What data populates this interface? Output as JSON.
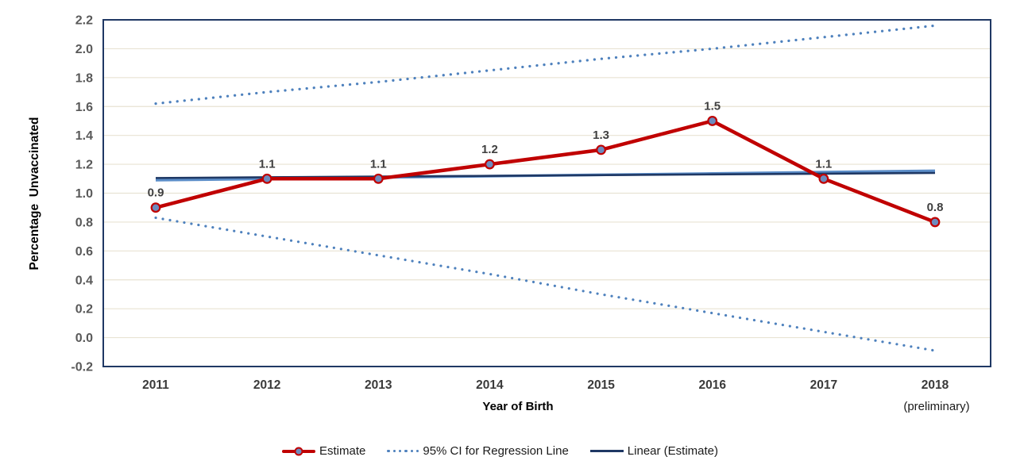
{
  "chart_data": {
    "type": "line",
    "title": "",
    "categories": [
      "2011",
      "2012",
      "2013",
      "2014",
      "2015",
      "2016",
      "2017",
      "2018"
    ],
    "xlabel": "Year of Birth",
    "x_note": "(preliminary)",
    "ylabel": "Percentage  Unvaccinated",
    "ylim": [
      -0.2,
      2.2
    ],
    "ytick_step": 0.2,
    "grid": "horizontal only",
    "legend_position": "bottom",
    "series": [
      {
        "name": "95% CI for Regression Line (upper bound)",
        "role": "ci-upper",
        "style": "dotted",
        "color": "#4E81BD",
        "values": [
          1.62,
          1.7,
          1.77,
          1.85,
          1.93,
          2.0,
          2.08,
          2.16
        ]
      },
      {
        "name": "95% CI for Regression Line (lower bound)",
        "role": "ci-lower",
        "style": "dotted",
        "color": "#4E81BD",
        "values": [
          0.83,
          0.7,
          0.57,
          0.44,
          0.3,
          0.17,
          0.04,
          -0.09
        ]
      },
      {
        "name": "Regression line",
        "role": "regression",
        "style": "solid",
        "color": "#5B8DC8",
        "values": [
          1.09,
          1.099,
          1.109,
          1.118,
          1.127,
          1.136,
          1.146,
          1.155
        ]
      },
      {
        "name": "Linear (Estimate)",
        "role": "trend",
        "style": "solid",
        "color": "#1F3864",
        "values": [
          1.105,
          1.11,
          1.115,
          1.12,
          1.125,
          1.13,
          1.135,
          1.14
        ]
      },
      {
        "name": "Estimate",
        "role": "estimate",
        "style": "solid-markers",
        "color": "#C00000",
        "marker_fill": "#6D8BBE",
        "values": [
          0.9,
          1.1,
          1.1,
          1.2,
          1.3,
          1.5,
          1.1,
          0.8
        ],
        "data_labels": [
          "0.9",
          "1.1",
          "1.1",
          "1.2",
          "1.3",
          "1.5",
          "1.1",
          "0.8"
        ]
      }
    ],
    "legend": [
      {
        "label": "Estimate"
      },
      {
        "label": "95% CI for Regression Line"
      },
      {
        "label": "Linear (Estimate)"
      }
    ],
    "colors": {
      "grid": "#E8E3D3",
      "border": "#1F3864",
      "ytick": "#595959",
      "xtick": "#3A3A3A",
      "data_label": "#404040"
    }
  }
}
